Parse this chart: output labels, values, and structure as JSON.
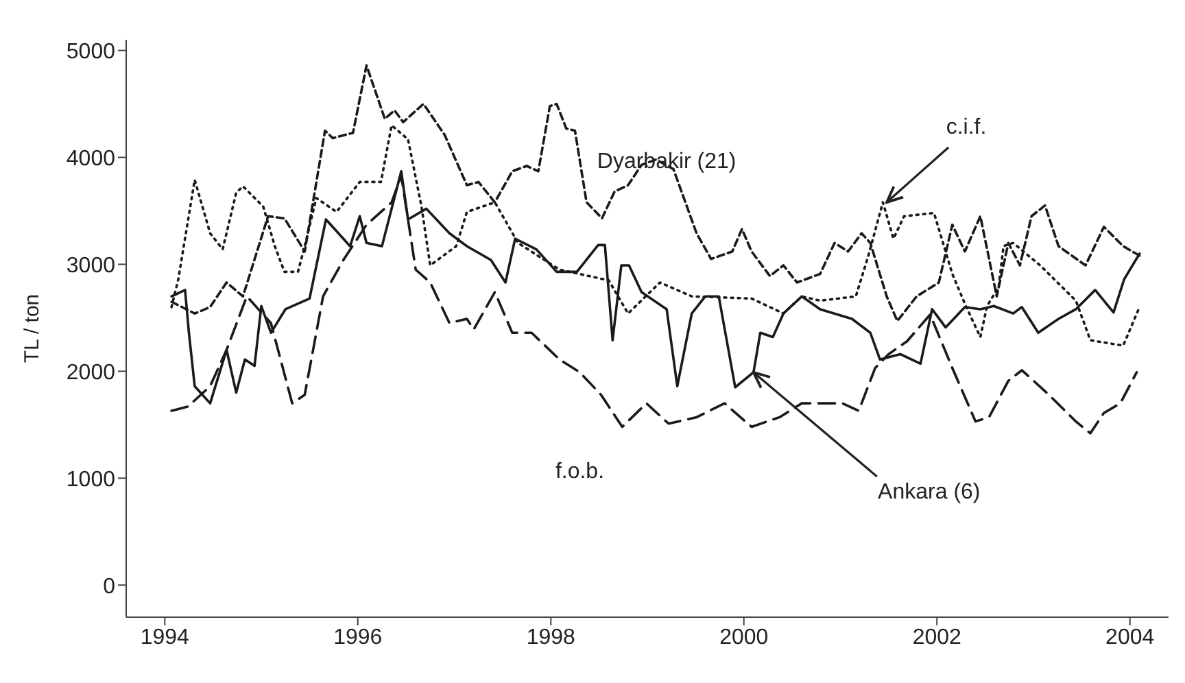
{
  "chart_data": {
    "type": "line",
    "ylabel": "TL / ton",
    "xlim": [
      1993.6,
      2004.4
    ],
    "xticks": [
      1994,
      1996,
      1998,
      2000,
      2002,
      2004
    ],
    "ylim": [
      -300,
      5100
    ],
    "yticks": [
      0,
      1000,
      2000,
      3000,
      4000,
      5000
    ],
    "grid": false,
    "legend": false,
    "marker": "none",
    "annotations": [
      {
        "text": "Ankara (6)",
        "x": 2000.1,
        "y": 1990
      },
      {
        "text": "c.i.f.",
        "x": 2001.48,
        "y": 3580
      }
    ],
    "series": [
      {
        "color": "#1a1a1a",
        "line_style": "solid",
        "x": [
          1994.07,
          1994.21,
          1994.25,
          1994.31,
          1994.47,
          1994.64,
          1994.74,
          1994.83,
          1994.93,
          1995.0,
          1995.1,
          1995.25,
          1995.5,
          1995.67,
          1995.92,
          1996.02,
          1996.09,
          1996.25,
          1996.45,
          1996.52,
          1996.71,
          1996.95,
          1997.13,
          1997.38,
          1997.53,
          1997.63,
          1997.85,
          1998.06,
          1998.27,
          1998.49,
          1998.56,
          1998.64,
          1998.73,
          1998.81,
          1998.94,
          1999.2,
          1999.31,
          1999.46,
          1999.6,
          1999.74,
          1999.91,
          2000.1,
          2000.17,
          2000.3,
          2000.41,
          2000.6,
          2000.79,
          2001.12,
          2001.31,
          2001.41,
          2001.62,
          2001.83,
          2001.95,
          2002.09,
          2002.29,
          2002.45,
          2002.59,
          2002.79,
          2002.88,
          2003.05,
          2003.26,
          2003.44,
          2003.64,
          2003.83,
          2003.94,
          2004.1
        ],
        "values": [
          2700,
          2760,
          2360,
          1860,
          1700,
          2200,
          1800,
          2110,
          2050,
          2610,
          2360,
          2580,
          2680,
          3420,
          3170,
          3450,
          3200,
          3170,
          3870,
          3420,
          3520,
          3290,
          3170,
          3040,
          2830,
          3240,
          3140,
          2930,
          2930,
          3180,
          3180,
          2290,
          2990,
          2990,
          2740,
          2580,
          1860,
          2540,
          2700,
          2700,
          1850,
          1990,
          2360,
          2320,
          2540,
          2700,
          2580,
          2490,
          2360,
          2110,
          2160,
          2070,
          2580,
          2410,
          2600,
          2580,
          2610,
          2540,
          2600,
          2360,
          2490,
          2580,
          2760,
          2550,
          2860,
          3100
        ]
      },
      {
        "name": "Dyarbakir (21)",
        "color": "#1a1a1a",
        "line_style": "dashed",
        "x": [
          1994.07,
          1994.31,
          1994.47,
          1994.64,
          1994.81,
          1995.07,
          1995.24,
          1995.45,
          1995.66,
          1995.74,
          1995.95,
          1996.09,
          1996.28,
          1996.38,
          1996.47,
          1996.68,
          1996.9,
          1997.13,
          1997.25,
          1997.42,
          1997.6,
          1997.75,
          1997.87,
          1997.99,
          1998.06,
          1998.16,
          1998.25,
          1998.37,
          1998.53,
          1998.66,
          1998.8,
          1998.94,
          1999.09,
          1999.27,
          1999.51,
          1999.66,
          1999.88,
          1999.98,
          2000.08,
          2000.27,
          2000.41,
          2000.55,
          2000.79,
          2000.94,
          2001.08,
          2001.22,
          2001.31,
          2001.48,
          2001.59,
          2001.79,
          2002.02,
          2002.16,
          2002.29,
          2002.45,
          2002.62,
          2002.74,
          2002.86,
          2002.98,
          2003.12,
          2003.26,
          2003.54,
          2003.73,
          2003.93,
          2004.1
        ],
        "values": [
          2650,
          2540,
          2600,
          2830,
          2700,
          3450,
          3430,
          3120,
          4250,
          4180,
          4230,
          4860,
          4360,
          4440,
          4330,
          4500,
          4210,
          3740,
          3770,
          3580,
          3870,
          3920,
          3870,
          4480,
          4500,
          4270,
          4250,
          3580,
          3430,
          3680,
          3740,
          3930,
          3980,
          3890,
          3290,
          3050,
          3120,
          3330,
          3120,
          2890,
          2990,
          2830,
          2910,
          3200,
          3120,
          3290,
          3200,
          2700,
          2470,
          2700,
          2830,
          3370,
          3120,
          3450,
          2700,
          3200,
          2990,
          3450,
          3550,
          3170,
          2990,
          3350,
          3170,
          3080
        ]
      },
      {
        "color": "#1a1a1a",
        "line_style": "dotted",
        "x": [
          1994.07,
          1994.14,
          1994.31,
          1994.47,
          1994.6,
          1994.74,
          1994.81,
          1995.02,
          1995.14,
          1995.24,
          1995.38,
          1995.45,
          1995.57,
          1995.78,
          1996.02,
          1996.24,
          1996.35,
          1996.52,
          1996.66,
          1996.75,
          1997.02,
          1997.13,
          1997.42,
          1997.66,
          1998.09,
          1998.6,
          1998.8,
          1999.13,
          1999.46,
          2000.08,
          2000.41,
          2000.6,
          2000.79,
          2001.16,
          2001.29,
          2001.44,
          2001.55,
          2001.66,
          2001.97,
          2002.16,
          2002.3,
          2002.45,
          2002.52,
          2002.64,
          2002.69,
          2002.79,
          2003.07,
          2003.44,
          2003.59,
          2003.93,
          2004.09
        ],
        "values": [
          2600,
          2860,
          3790,
          3290,
          3140,
          3670,
          3730,
          3540,
          3170,
          2930,
          2930,
          3170,
          3620,
          3490,
          3770,
          3770,
          4300,
          4170,
          3540,
          2990,
          3170,
          3490,
          3580,
          3200,
          2950,
          2850,
          2540,
          2830,
          2700,
          2680,
          2540,
          2700,
          2660,
          2700,
          3080,
          3580,
          3240,
          3450,
          3480,
          2910,
          2610,
          2320,
          2610,
          2790,
          3170,
          3200,
          2990,
          2660,
          2290,
          2240,
          2580
        ]
      },
      {
        "name": "f.o.b.",
        "color": "#1a1a1a",
        "line_style": "dashed",
        "x": [
          1994.07,
          1994.24,
          1994.47,
          1994.64,
          1994.85,
          1995.1,
          1995.32,
          1995.45,
          1995.64,
          1995.85,
          1996.09,
          1996.35,
          1996.45,
          1996.6,
          1996.75,
          1996.95,
          1997.13,
          1997.2,
          1997.42,
          1997.6,
          1997.8,
          1998.09,
          1998.3,
          1998.52,
          1998.74,
          1998.99,
          1999.22,
          1999.51,
          1999.8,
          2000.08,
          2000.37,
          2000.6,
          2000.74,
          2001.02,
          2001.19,
          2001.36,
          2001.5,
          2001.69,
          2001.93,
          2002.16,
          2002.4,
          2002.54,
          2002.74,
          2002.88,
          2003.16,
          2003.44,
          2003.59,
          2003.73,
          2003.9,
          2004.07
        ],
        "values": [
          1630,
          1670,
          1860,
          2200,
          2700,
          2450,
          1700,
          1780,
          2700,
          3040,
          3370,
          3580,
          3830,
          2950,
          2830,
          2450,
          2490,
          2390,
          2740,
          2360,
          2360,
          2110,
          1990,
          1780,
          1480,
          1700,
          1510,
          1570,
          1700,
          1480,
          1570,
          1700,
          1700,
          1700,
          1630,
          2030,
          2160,
          2280,
          2530,
          2030,
          1530,
          1570,
          1910,
          2010,
          1780,
          1530,
          1420,
          1610,
          1700,
          1990
        ]
      }
    ]
  }
}
